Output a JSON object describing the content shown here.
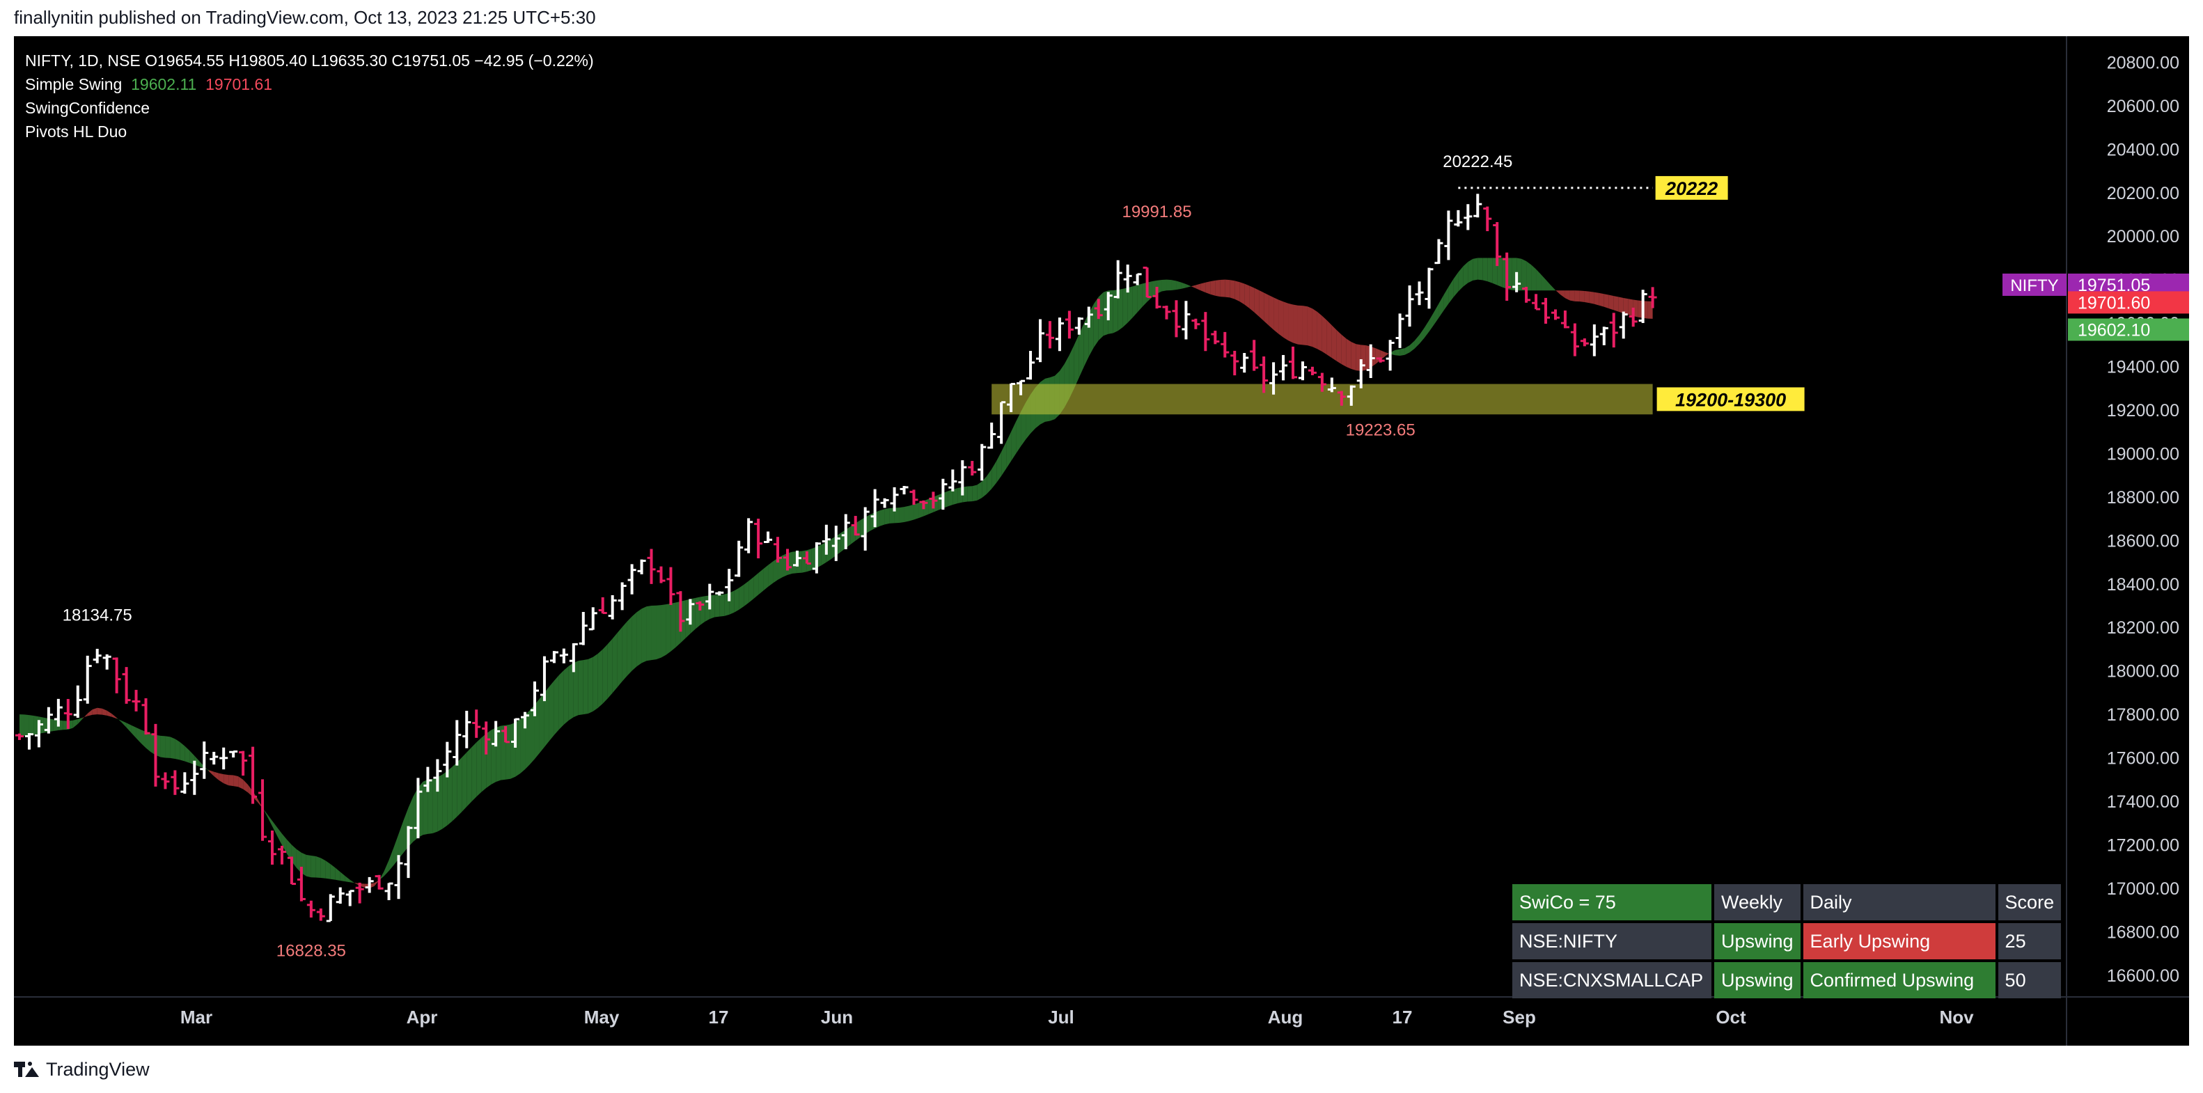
{
  "publisher_line": "finallynitin published on TradingView.com, Oct 13, 2023 21:25 UTC+5:30",
  "legend": {
    "line1": "NIFTY, 1D, NSE  O19654.55  H19805.40  L19635.30  C19751.05  −42.95 (−0.22%)",
    "ss_label": "Simple Swing",
    "ss_green": "19602.11",
    "ss_red": "19701.61",
    "line3": "SwingConfidence",
    "line4": "Pivots HL Duo"
  },
  "colors": {
    "background": "#000000",
    "bull_bar": "#ffffff",
    "bear_bar": "#e91e63",
    "ribbon_bull": "#2e7d32",
    "ribbon_bear": "#b03a3a",
    "zone": "#c8c83a",
    "zone_label_bg": "#ffeb3b",
    "symbol_tag": "#9c27b0"
  },
  "chart_data": {
    "type": "ohlc",
    "symbol": "NIFTY",
    "timeframe": "1D",
    "ylim": [
      16500,
      20920
    ],
    "y_ticks": [
      "20800.00",
      "20600.00",
      "20400.00",
      "20200.00",
      "20000.00",
      "19800.00",
      "19600.00",
      "19400.00",
      "19200.00",
      "19000.00",
      "18800.00",
      "18600.00",
      "18400.00",
      "18200.00",
      "18000.00",
      "17800.00",
      "17600.00",
      "17400.00",
      "17200.00",
      "17000.00",
      "16800.00",
      "16600.00"
    ],
    "x_ticks": [
      "Mar",
      "Apr",
      "May",
      "17",
      "Jun",
      "Jul",
      "Aug",
      "17",
      "Sep",
      "Oct",
      "Nov"
    ],
    "close_path": [
      {
        "bar": 0,
        "close": 17700
      },
      {
        "bar": 5,
        "close": 17830
      },
      {
        "bar": 8,
        "close": 18100
      },
      {
        "bar": 12,
        "close": 17850
      },
      {
        "bar": 15,
        "close": 17450
      },
      {
        "bar": 20,
        "close": 17600
      },
      {
        "bar": 22,
        "close": 17650
      },
      {
        "bar": 26,
        "close": 17200
      },
      {
        "bar": 30,
        "close": 16900
      },
      {
        "bar": 35,
        "close": 17000
      },
      {
        "bar": 38,
        "close": 17050
      },
      {
        "bar": 42,
        "close": 17500
      },
      {
        "bar": 46,
        "close": 17750
      },
      {
        "bar": 50,
        "close": 17700
      },
      {
        "bar": 55,
        "close": 18050
      },
      {
        "bar": 60,
        "close": 18300
      },
      {
        "bar": 65,
        "close": 18500
      },
      {
        "bar": 68,
        "close": 18250
      },
      {
        "bar": 72,
        "close": 18350
      },
      {
        "bar": 75,
        "close": 18650
      },
      {
        "bar": 79,
        "close": 18500
      },
      {
        "bar": 85,
        "close": 18650
      },
      {
        "bar": 90,
        "close": 18850
      },
      {
        "bar": 94,
        "close": 18800
      },
      {
        "bar": 98,
        "close": 18950
      },
      {
        "bar": 102,
        "close": 19300
      },
      {
        "bar": 106,
        "close": 19550
      },
      {
        "bar": 110,
        "close": 19650
      },
      {
        "bar": 114,
        "close": 19850
      },
      {
        "bar": 117,
        "close": 19700
      },
      {
        "bar": 120,
        "close": 19600
      },
      {
        "bar": 124,
        "close": 19450
      },
      {
        "bar": 128,
        "close": 19350
      },
      {
        "bar": 132,
        "close": 19400
      },
      {
        "bar": 136,
        "close": 19300
      },
      {
        "bar": 140,
        "close": 19450
      },
      {
        "bar": 144,
        "close": 19750
      },
      {
        "bar": 148,
        "close": 20100
      },
      {
        "bar": 150,
        "close": 20150
      },
      {
        "bar": 153,
        "close": 19800
      },
      {
        "bar": 157,
        "close": 19650
      },
      {
        "bar": 160,
        "close": 19500
      },
      {
        "bar": 163,
        "close": 19550
      },
      {
        "bar": 166,
        "close": 19650
      },
      {
        "bar": 168,
        "close": 19751
      }
    ],
    "ribbon": [
      {
        "bar": 0,
        "g": 17800,
        "r": 17700
      },
      {
        "bar": 5,
        "g": 17770,
        "r": 17730
      },
      {
        "bar": 8,
        "g": 17800,
        "r": 17830
      },
      {
        "bar": 15,
        "g": 17700,
        "r": 17600
      },
      {
        "bar": 22,
        "g": 17470,
        "r": 17520
      },
      {
        "bar": 30,
        "g": 17150,
        "r": 17050
      },
      {
        "bar": 36,
        "g": 17000,
        "r": 17020
      },
      {
        "bar": 42,
        "g": 17500,
        "r": 17250
      },
      {
        "bar": 50,
        "g": 17750,
        "r": 17500
      },
      {
        "bar": 58,
        "g": 18050,
        "r": 17800
      },
      {
        "bar": 65,
        "g": 18300,
        "r": 18050
      },
      {
        "bar": 72,
        "g": 18350,
        "r": 18250
      },
      {
        "bar": 80,
        "g": 18550,
        "r": 18450
      },
      {
        "bar": 90,
        "g": 18750,
        "r": 18680
      },
      {
        "bar": 98,
        "g": 18850,
        "r": 18780
      },
      {
        "bar": 106,
        "g": 19350,
        "r": 19150
      },
      {
        "bar": 112,
        "g": 19750,
        "r": 19550
      },
      {
        "bar": 118,
        "g": 19800,
        "r": 19750
      },
      {
        "bar": 124,
        "g": 19720,
        "r": 19800
      },
      {
        "bar": 132,
        "g": 19500,
        "r": 19680
      },
      {
        "bar": 138,
        "g": 19380,
        "r": 19500
      },
      {
        "bar": 142,
        "g": 19480,
        "r": 19450
      },
      {
        "bar": 150,
        "g": 19900,
        "r": 19800
      },
      {
        "bar": 154,
        "g": 19900,
        "r": 19750
      },
      {
        "bar": 160,
        "g": 19700,
        "r": 19750
      },
      {
        "bar": 168,
        "g": 19620,
        "r": 19700
      }
    ],
    "pivots": [
      {
        "label": "18134.75",
        "bar": 8,
        "price": 18134.75,
        "color": "#ffffff",
        "pos": "above"
      },
      {
        "label": "16828.35",
        "bar": 30,
        "price": 16828.35,
        "color": "#f47c7c",
        "pos": "below"
      },
      {
        "label": "19991.85",
        "bar": 117,
        "price": 19991.85,
        "color": "#f47c7c",
        "pos": "above"
      },
      {
        "label": "19223.65",
        "bar": 140,
        "price": 19223.65,
        "color": "#f47c7c",
        "pos": "below"
      },
      {
        "label": "20222.45",
        "bar": 150,
        "price": 20222.45,
        "color": "#ffffff",
        "pos": "above"
      }
    ],
    "zone": {
      "low": 19180,
      "high": 19320,
      "from_bar": 100,
      "to_bar": 168,
      "label": "19200-19300"
    },
    "resistance": {
      "price": 20222,
      "from_bar": 148,
      "to_bar": 168,
      "label": "20222"
    },
    "price_tags": [
      {
        "value": "19751.05",
        "price": 19751.05,
        "color": "#9c27b0",
        "name": "NIFTY"
      },
      {
        "value": "19701.60",
        "price": 19701.6,
        "color": "#f23645"
      },
      {
        "value": "19602.10",
        "price": 19602.1,
        "color": "#4caf50"
      }
    ]
  },
  "table": {
    "header": [
      "SwiCo = 75",
      "Weekly",
      "Daily",
      "Score"
    ],
    "rows": [
      [
        "NSE:NIFTY",
        "Upswing",
        "Early Upswing",
        "25"
      ],
      [
        "NSE:CNXSMALLCAP",
        "Upswing",
        "Confirmed Upswing",
        "50"
      ]
    ]
  },
  "footer_brand": "TradingView"
}
